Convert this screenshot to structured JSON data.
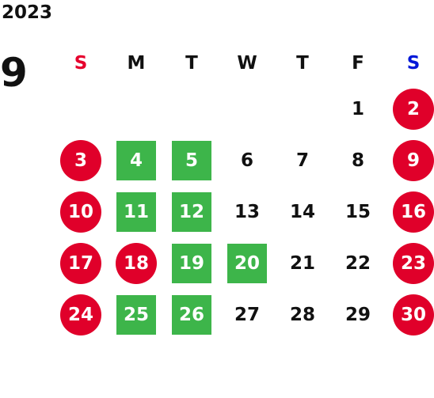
{
  "calendar": {
    "year": "2023",
    "month": "9",
    "weekdays": [
      {
        "label": "S",
        "color": "#e6002d"
      },
      {
        "label": "M",
        "color": "#111111"
      },
      {
        "label": "T",
        "color": "#111111"
      },
      {
        "label": "W",
        "color": "#111111"
      },
      {
        "label": "T",
        "color": "#111111"
      },
      {
        "label": "F",
        "color": "#111111"
      },
      {
        "label": "S",
        "color": "#0018d8"
      }
    ],
    "colors": {
      "holiday": "#e0002a",
      "closed": "#3db54a",
      "normal_text": "#111111"
    },
    "weeks": [
      [
        {
          "day": "",
          "kind": "empty"
        },
        {
          "day": "",
          "kind": "empty"
        },
        {
          "day": "",
          "kind": "empty"
        },
        {
          "day": "",
          "kind": "empty"
        },
        {
          "day": "",
          "kind": "empty"
        },
        {
          "day": "1",
          "kind": "normal"
        },
        {
          "day": "2",
          "kind": "holiday"
        }
      ],
      [
        {
          "day": "3",
          "kind": "holiday"
        },
        {
          "day": "4",
          "kind": "closed"
        },
        {
          "day": "5",
          "kind": "closed"
        },
        {
          "day": "6",
          "kind": "normal"
        },
        {
          "day": "7",
          "kind": "normal"
        },
        {
          "day": "8",
          "kind": "normal"
        },
        {
          "day": "9",
          "kind": "holiday"
        }
      ],
      [
        {
          "day": "10",
          "kind": "holiday"
        },
        {
          "day": "11",
          "kind": "closed"
        },
        {
          "day": "12",
          "kind": "closed"
        },
        {
          "day": "13",
          "kind": "normal"
        },
        {
          "day": "14",
          "kind": "normal"
        },
        {
          "day": "15",
          "kind": "normal"
        },
        {
          "day": "16",
          "kind": "holiday"
        }
      ],
      [
        {
          "day": "17",
          "kind": "holiday"
        },
        {
          "day": "18",
          "kind": "holiday"
        },
        {
          "day": "19",
          "kind": "closed"
        },
        {
          "day": "20",
          "kind": "closed"
        },
        {
          "day": "21",
          "kind": "normal"
        },
        {
          "day": "22",
          "kind": "normal"
        },
        {
          "day": "23",
          "kind": "holiday"
        }
      ],
      [
        {
          "day": "24",
          "kind": "holiday"
        },
        {
          "day": "25",
          "kind": "closed"
        },
        {
          "day": "26",
          "kind": "closed"
        },
        {
          "day": "27",
          "kind": "normal"
        },
        {
          "day": "28",
          "kind": "normal"
        },
        {
          "day": "29",
          "kind": "normal"
        },
        {
          "day": "30",
          "kind": "holiday"
        }
      ]
    ]
  }
}
